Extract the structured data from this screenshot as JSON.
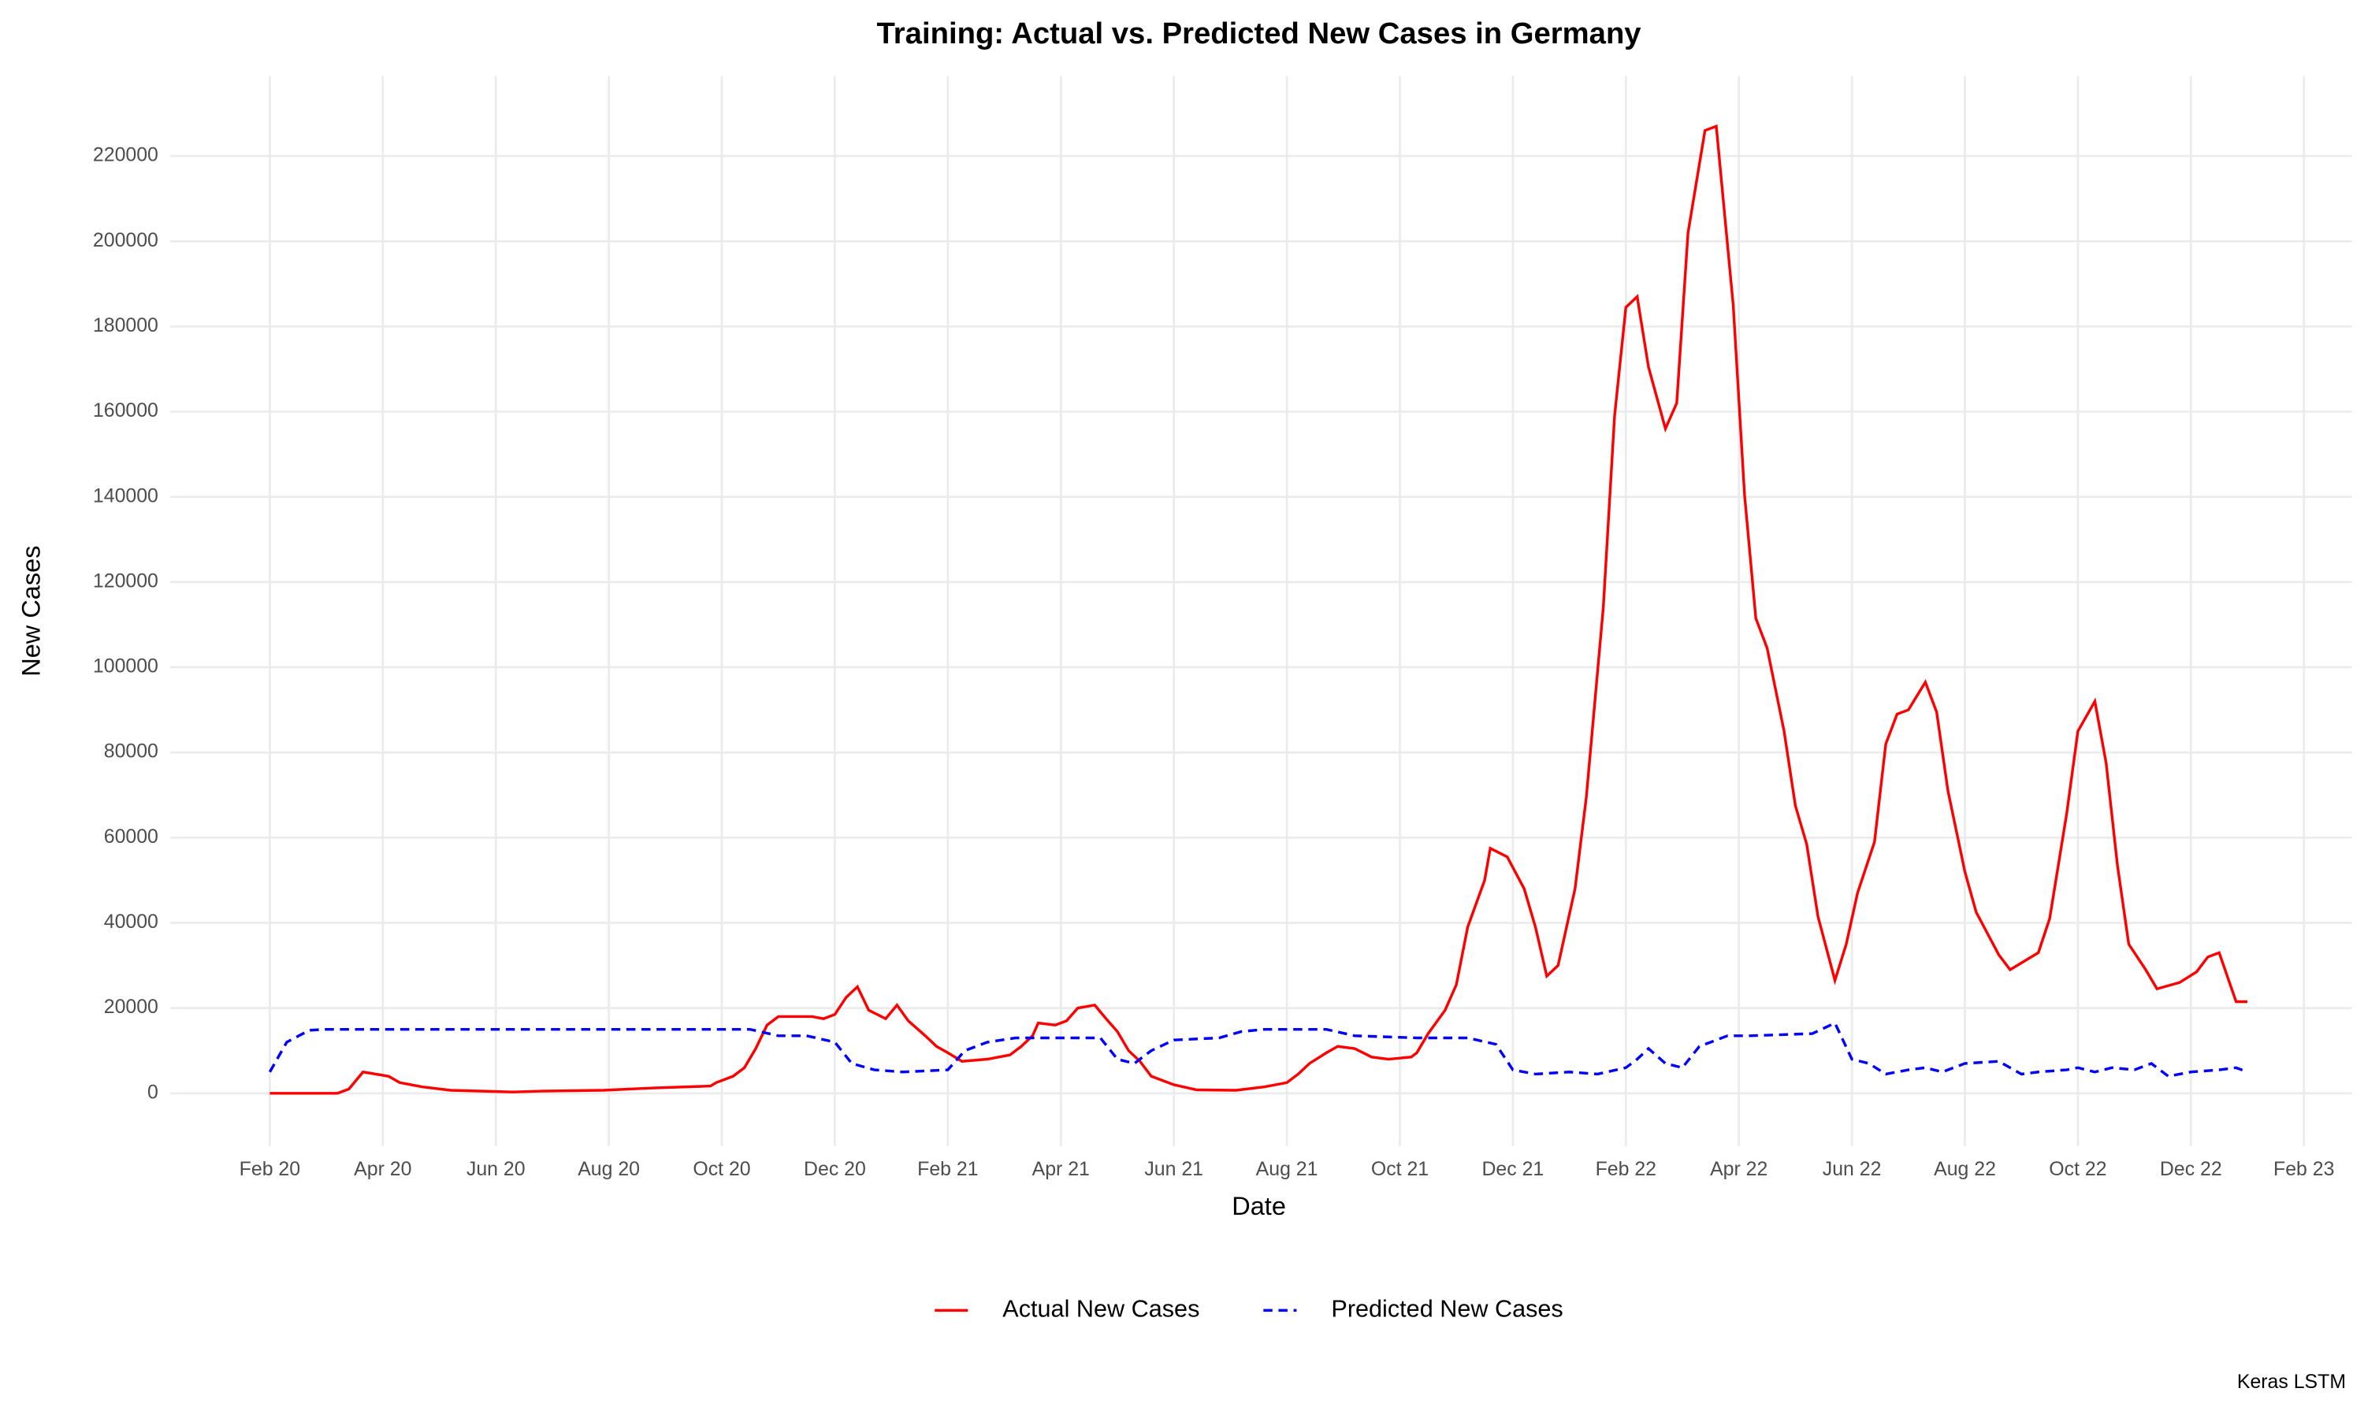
{
  "chart_data": {
    "type": "line",
    "title": "Training: Actual vs. Predicted New Cases in Germany",
    "x_label": "Date",
    "y_label": "New Cases",
    "caption": "Keras LSTM",
    "grid": true,
    "legend": "bottom",
    "xlim": [
      -1.76,
      36.85
    ],
    "ylim": [
      -12400,
      238800
    ],
    "xticks": [
      {
        "value": 0,
        "label": "Feb 20"
      },
      {
        "value": 2,
        "label": "Apr 20"
      },
      {
        "value": 4,
        "label": "Jun 20"
      },
      {
        "value": 6,
        "label": "Aug 20"
      },
      {
        "value": 8,
        "label": "Oct 20"
      },
      {
        "value": 10,
        "label": "Dec 20"
      },
      {
        "value": 12,
        "label": "Feb 21"
      },
      {
        "value": 14,
        "label": "Apr 21"
      },
      {
        "value": 16,
        "label": "Jun 21"
      },
      {
        "value": 18,
        "label": "Aug 21"
      },
      {
        "value": 20,
        "label": "Oct 21"
      },
      {
        "value": 22,
        "label": "Dec 21"
      },
      {
        "value": 24,
        "label": "Feb 22"
      },
      {
        "value": 26,
        "label": "Apr 22"
      },
      {
        "value": 28,
        "label": "Jun 22"
      },
      {
        "value": 30,
        "label": "Aug 22"
      },
      {
        "value": 32,
        "label": "Oct 22"
      },
      {
        "value": 34,
        "label": "Dec 22"
      },
      {
        "value": 36,
        "label": "Feb 23"
      }
    ],
    "yticks": [
      0,
      20000,
      40000,
      60000,
      80000,
      100000,
      120000,
      140000,
      160000,
      180000,
      200000,
      220000
    ],
    "series": [
      {
        "name": "Actual New Cases",
        "color": "#ff0000",
        "linestyle": "solid",
        "x": [
          0,
          1.2,
          1.4,
          1.65,
          2.1,
          2.3,
          2.7,
          3.2,
          4.3,
          4.8,
          5.9,
          6.7,
          7.8,
          7.9,
          8.2,
          8.4,
          8.6,
          8.8,
          9.0,
          9.6,
          9.8,
          10.0,
          10.2,
          10.4,
          10.6,
          10.9,
          11.1,
          11.3,
          11.6,
          11.8,
          12.0,
          12.25,
          12.7,
          13.1,
          13.3,
          13.5,
          13.6,
          13.9,
          14.1,
          14.3,
          14.6,
          14.8,
          15.0,
          15.2,
          15.4,
          15.6,
          16.0,
          16.4,
          17.1,
          17.6,
          18.0,
          18.2,
          18.4,
          18.7,
          18.9,
          19.2,
          19.5,
          19.8,
          20.2,
          20.3,
          20.5,
          20.8,
          21.0,
          21.2,
          21.5,
          21.6,
          21.9,
          22.2,
          22.4,
          22.6,
          22.8,
          23.1,
          23.3,
          23.6,
          23.8,
          24.0,
          24.2,
          24.4,
          24.7,
          24.9,
          25.1,
          25.4,
          25.6,
          25.9,
          26.1,
          26.3,
          26.5,
          26.8,
          27.0,
          27.2,
          27.4,
          27.7,
          27.9,
          28.1,
          28.4,
          28.6,
          28.8,
          29.0,
          29.3,
          29.5,
          29.7,
          30.0,
          30.2,
          30.4,
          30.6,
          30.8,
          31.3,
          31.5,
          31.8,
          32.0,
          32.3,
          32.5,
          32.7,
          32.9,
          33.2,
          33.4,
          33.8,
          34.1,
          34.3,
          34.5,
          34.8,
          35.0
        ],
        "values": [
          0,
          0,
          1000,
          5000,
          4000,
          2500,
          1500,
          700,
          300,
          500,
          700,
          1200,
          1700,
          2500,
          4000,
          6000,
          10500,
          16000,
          18000,
          18000,
          17500,
          18500,
          22500,
          25000,
          19500,
          17500,
          20700,
          17000,
          13500,
          11000,
          9500,
          7500,
          8000,
          9000,
          11000,
          13500,
          16500,
          16000,
          17000,
          20000,
          20700,
          17500,
          14500,
          10000,
          7500,
          4000,
          2000,
          800,
          700,
          1500,
          2500,
          4500,
          7000,
          9500,
          11000,
          10500,
          8500,
          8000,
          8500,
          9500,
          14000,
          19500,
          25500,
          39000,
          50000,
          57500,
          55500,
          48000,
          39000,
          27500,
          30000,
          48000,
          69500,
          114000,
          159000,
          184500,
          187000,
          170500,
          156000,
          162000,
          202000,
          226000,
          227000,
          185000,
          140500,
          111500,
          104500,
          85000,
          67500,
          58500,
          41500,
          26500,
          35000,
          47000,
          59000,
          82000,
          89000,
          90000,
          96500,
          89500,
          71000,
          52000,
          42500,
          37500,
          32500,
          29000,
          33000,
          41000,
          65500,
          85000,
          92000,
          77500,
          53500,
          35000,
          29000,
          24500,
          26000,
          28500,
          32000,
          33000,
          21500,
          21500
        ]
      },
      {
        "name": "Predicted New Cases",
        "color": "#0000ff",
        "linestyle": "dashed",
        "x": [
          0,
          0.3,
          0.7,
          1,
          8.5,
          9.0,
          9.5,
          10,
          10.3,
          10.7,
          11.2,
          12,
          12.3,
          12.7,
          13.2,
          14,
          14.7,
          15.0,
          15.3,
          15.6,
          16,
          16.8,
          17.2,
          17.6,
          18.7,
          19.2,
          20.3,
          21.2,
          21.7,
          22.0,
          22.4,
          23.0,
          23.5,
          24,
          24.2,
          24.4,
          24.7,
          25.0,
          25.3,
          25.8,
          26.2,
          27.3,
          27.7,
          28.0,
          28.3,
          28.6,
          29,
          29.3,
          29.6,
          30,
          30.6,
          31,
          31.3,
          31.8,
          32,
          32.3,
          32.6,
          33,
          33.3,
          33.6,
          34,
          34.5,
          34.8,
          35
        ],
        "values": [
          5000,
          12000,
          14800,
          15000,
          15000,
          13500,
          13500,
          12000,
          7000,
          5500,
          5000,
          5500,
          10000,
          12000,
          13000,
          13000,
          13000,
          8000,
          7000,
          10000,
          12500,
          13000,
          14500,
          15000,
          15000,
          13500,
          13000,
          13000,
          11500,
          5500,
          4500,
          5000,
          4500,
          6000,
          8000,
          10500,
          7000,
          6000,
          11000,
          13500,
          13500,
          14000,
          16500,
          8000,
          7000,
          4500,
          5500,
          6000,
          5000,
          7000,
          7500,
          4500,
          5000,
          5500,
          6000,
          5000,
          6000,
          5500,
          7000,
          4000,
          5000,
          5500,
          6000,
          5000
        ]
      }
    ]
  }
}
